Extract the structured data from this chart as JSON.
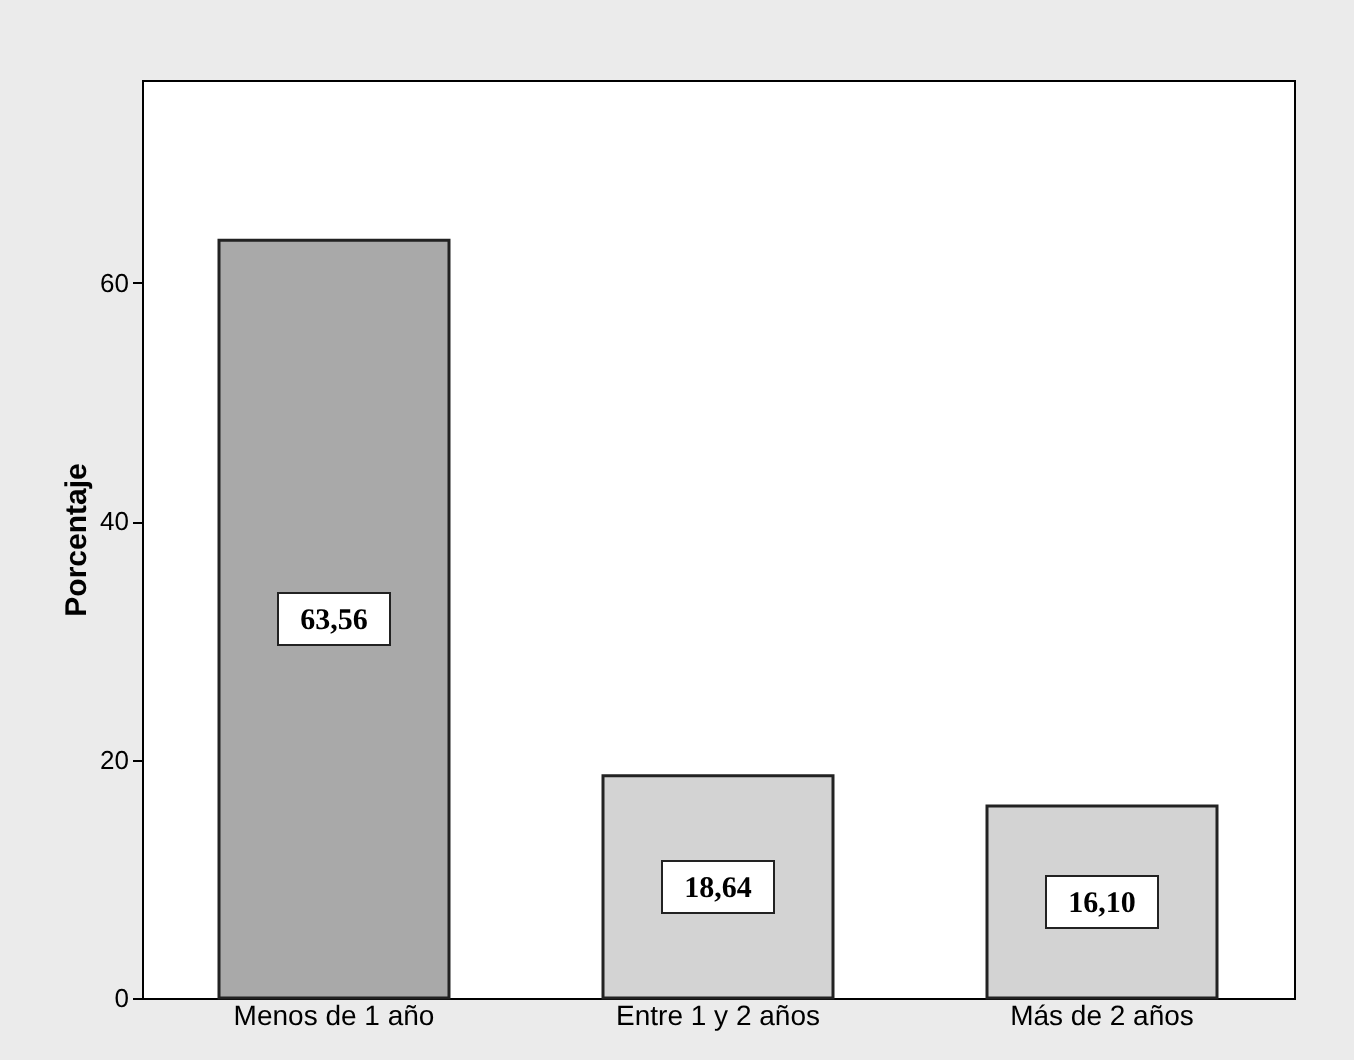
{
  "chart_data": {
    "type": "bar",
    "ylabel": "Porcentaje",
    "categories": [
      "Menos de 1 año",
      "Entre 1 y 2 años",
      "Más de 2 años"
    ],
    "values": [
      63.56,
      18.64,
      16.1
    ],
    "value_labels": [
      "63,56",
      "18,64",
      "16,10"
    ],
    "colors": [
      "#a9a9a9",
      "#d3d3d3",
      "#d3d3d3"
    ],
    "ylim": [
      0,
      77
    ],
    "yticks": [
      0,
      20,
      40,
      60
    ],
    "grid": false
  }
}
